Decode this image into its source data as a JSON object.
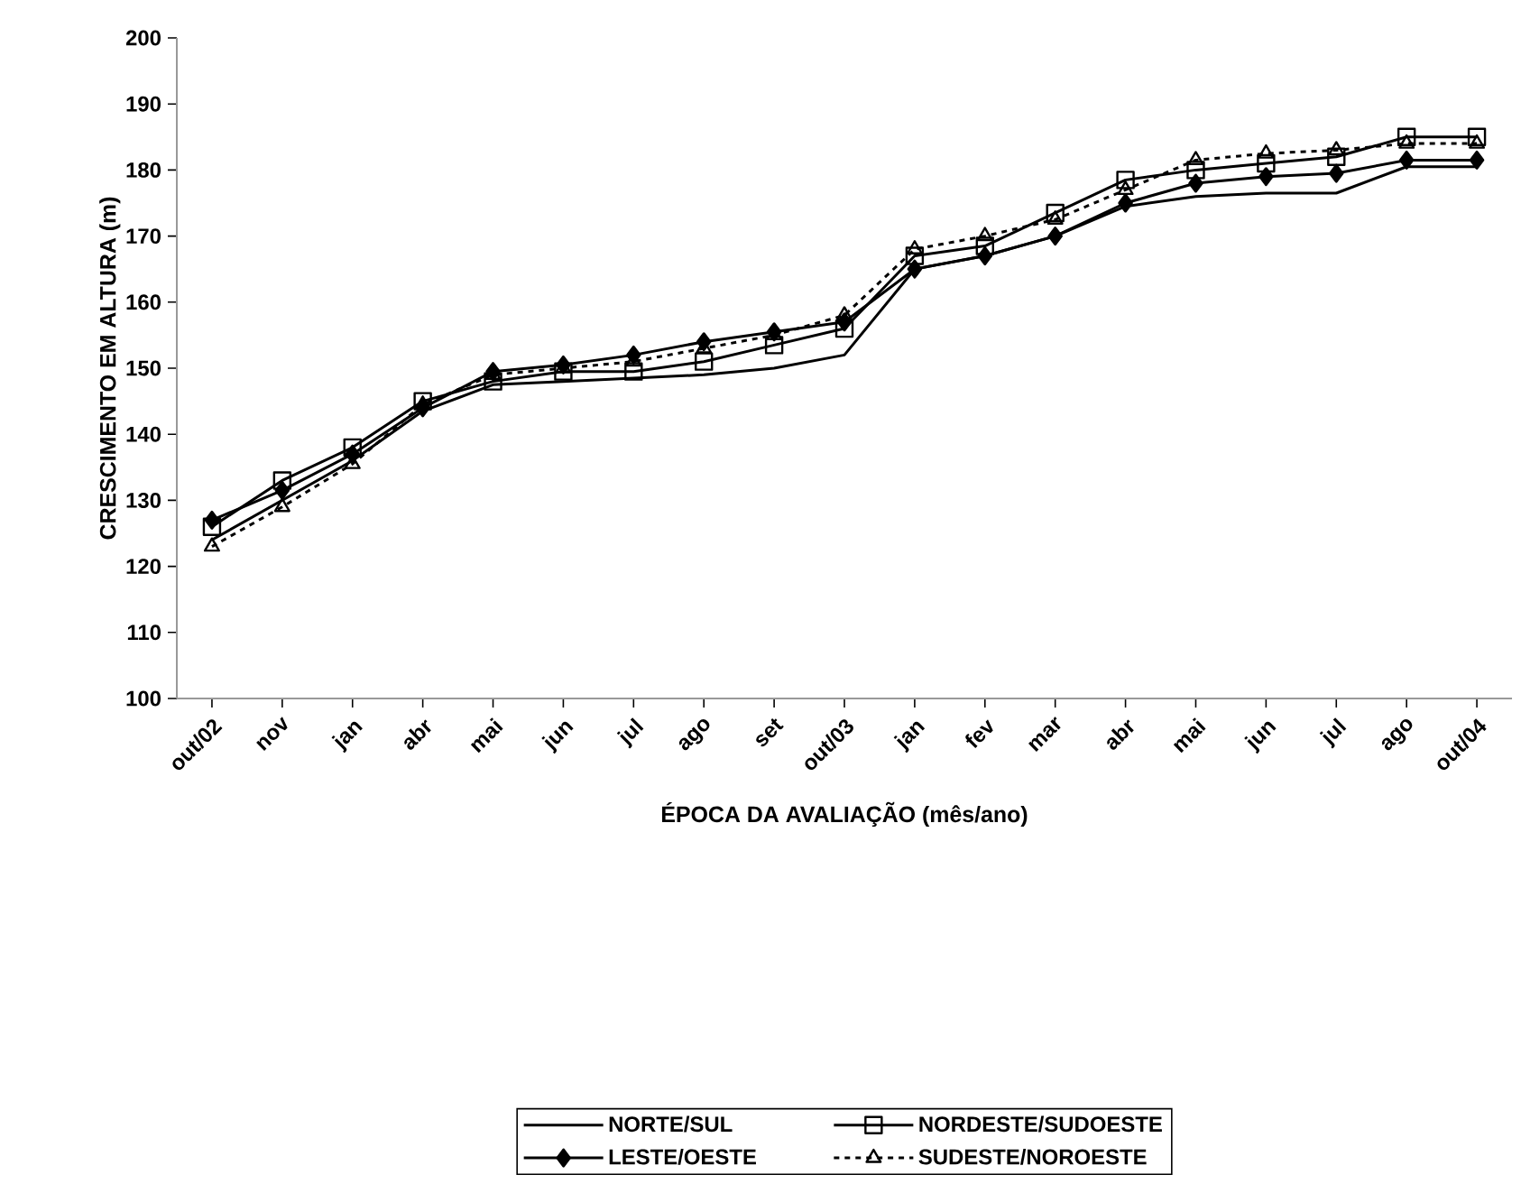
{
  "chart_data": {
    "type": "line",
    "xlabel": "ÉPOCA DA AVALIAÇÃO (mês/ano)",
    "ylabel": "CRESCIMENTO  EM ALTURA (m)",
    "categories": [
      "out/02",
      "nov",
      "jan",
      "abr",
      "mai",
      "jun",
      "jul",
      "ago",
      "set",
      "out/03",
      "jan",
      "fev",
      "mar",
      "abr",
      "mai",
      "jun",
      "jul",
      "ago",
      "out/04"
    ],
    "ylim": [
      100,
      200
    ],
    "yticks": [
      100,
      110,
      120,
      130,
      140,
      150,
      160,
      170,
      180,
      190,
      200
    ],
    "grid": false,
    "legend": "bottom",
    "series": [
      {
        "name": "NORTE/SUL",
        "color": "#000000",
        "marker": "none",
        "line_style": "solid",
        "values": [
          124,
          130,
          136,
          143.5,
          147.5,
          148,
          148.5,
          149,
          150,
          152,
          165,
          167,
          170,
          174.5,
          176,
          176.5,
          176.5,
          180.5,
          180.5
        ]
      },
      {
        "name": "NORDESTE/SUDOESTE",
        "color": "#000000",
        "marker": "square",
        "line_style": "solid",
        "values": [
          126,
          133,
          138,
          145,
          148,
          149.5,
          149.5,
          151,
          153.5,
          156,
          167,
          168.5,
          173.5,
          178.5,
          180,
          181,
          182,
          185,
          185
        ]
      },
      {
        "name": "LESTE/OESTE",
        "color": "#000000",
        "marker": "diamond",
        "line_style": "solid",
        "values": [
          127,
          131.5,
          137,
          144,
          149.5,
          150.5,
          152,
          154,
          155.5,
          157,
          165,
          167,
          170,
          175,
          178,
          179,
          179.5,
          181.5,
          181.5
        ]
      },
      {
        "name": "SUDESTE/NOROESTE",
        "color": "#000000",
        "marker": "triangle",
        "line_style": "dashed",
        "values": [
          123,
          129,
          135.5,
          144.5,
          149,
          150,
          151,
          153,
          155,
          158,
          168,
          170,
          172.5,
          177,
          181.5,
          182.5,
          183,
          184,
          184
        ]
      }
    ]
  }
}
